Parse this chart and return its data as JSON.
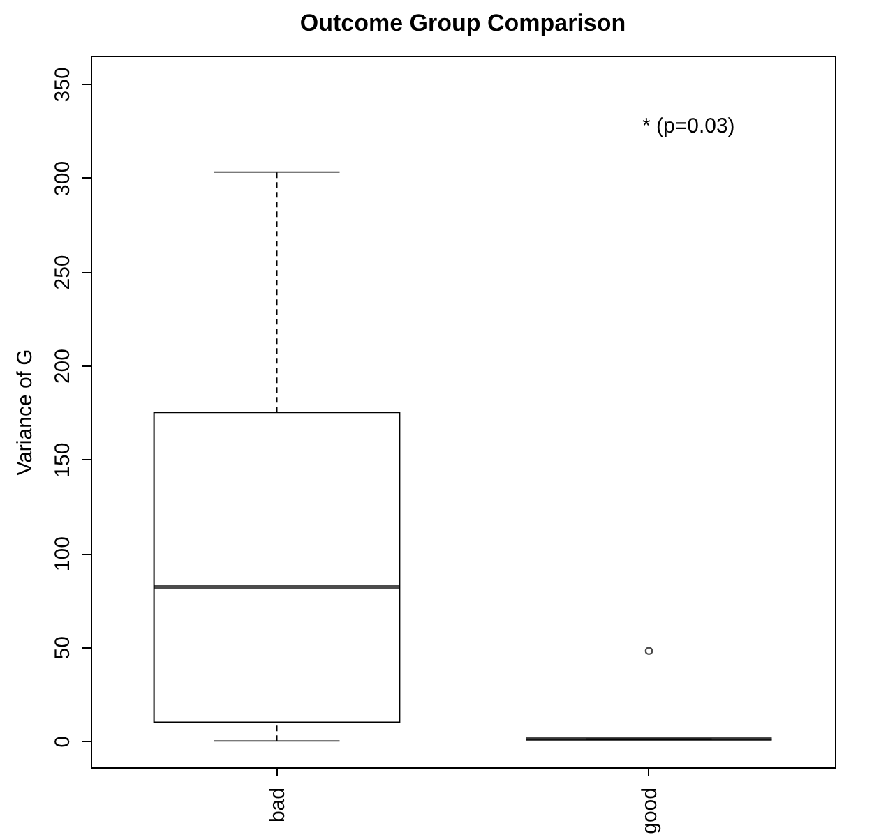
{
  "chart_data": {
    "type": "box",
    "title": "Outcome Group Comparison",
    "ylabel": "Variance of G",
    "categories": [
      "bad",
      "good"
    ],
    "boxes": [
      {
        "low": 0,
        "q1": 10,
        "median": 82,
        "q3": 175,
        "high": 303
      },
      {
        "low": 1,
        "q1": 1,
        "median": 1,
        "q3": 1,
        "high": 1,
        "outliers": [
          48
        ]
      }
    ],
    "ylim": [
      -14,
      365
    ],
    "yticks": [
      0,
      50,
      100,
      150,
      200,
      250,
      300,
      350
    ],
    "annotations": [
      "* (p=0.03)"
    ],
    "grid": false,
    "line_style": "dashed"
  }
}
